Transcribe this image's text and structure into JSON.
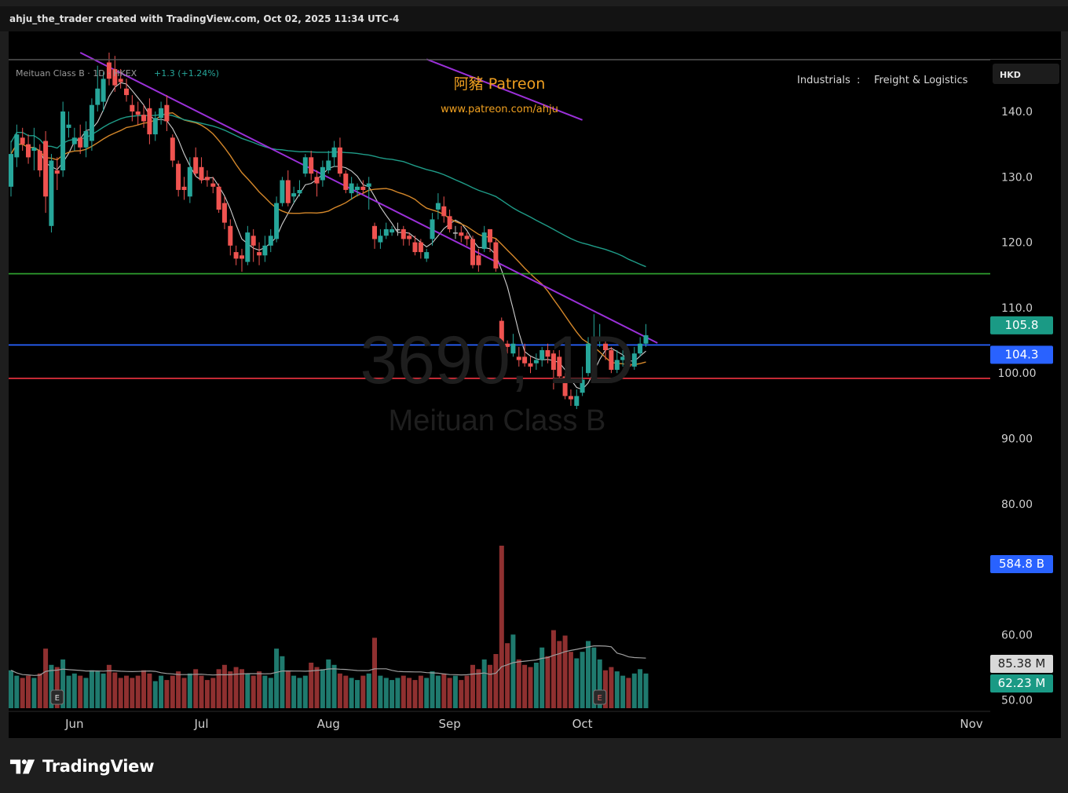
{
  "header": {
    "caption": "ahju_the_trader created with TradingView.com, Oct 02, 2025 11:34 UTC-4"
  },
  "chart_data": {
    "type": "candlestick",
    "symbol_line": "Meituan Class B · 1D · HKEX",
    "change_text": "+1.3 (+1.24%)",
    "watermark_symbol": "3690, 1D",
    "watermark_name": "Meituan Class B",
    "patreon_title": "阿豬 Patreon",
    "patreon_url": "www.patreon.com/ahju",
    "sector": "Industrials",
    "sector_sep": ":",
    "industry": "Freight & Logistics",
    "currency": "HKD",
    "price_axis_ticks": [
      "140.0",
      "130.0",
      "120.0",
      "110.0",
      "100.00",
      "90.00",
      "80.00",
      "60.00",
      "50.00"
    ],
    "price_axis_tick_values": [
      140,
      130,
      120,
      110,
      100,
      90,
      80,
      60,
      50
    ],
    "x_axis_labels": [
      "Jun",
      "Jul",
      "Aug",
      "Sep",
      "Oct",
      "Nov"
    ],
    "badges": {
      "last_price": "105.8",
      "blue_line_price": "104.3",
      "volume_total": "584.8 B",
      "volume_ma": "85.38 M",
      "volume_last": "62.23 M"
    },
    "horizontal_lines": [
      {
        "price": 115.2,
        "color": "#2e9e2e"
      },
      {
        "price": 104.3,
        "color": "#2962ff"
      },
      {
        "price": 99.2,
        "color": "#e0303c"
      }
    ],
    "trendlines": [
      {
        "from": {
          "date": "2025-06-03",
          "price": 149.0
        },
        "to": {
          "date": "2025-10-21",
          "price": 104.6
        },
        "color": "#9b30d9"
      },
      {
        "from": {
          "date": "2025-08-26",
          "price": 148.0
        },
        "to": {
          "date": "2025-10-02",
          "price": 138.7
        },
        "color": "#9b30d9"
      }
    ],
    "candles": [
      {
        "o": 128.5,
        "c": 133.5,
        "h": 135.5,
        "l": 127.0,
        "v": 35
      },
      {
        "o": 133.0,
        "c": 136.5,
        "h": 138.0,
        "l": 131.5,
        "v": 30
      },
      {
        "o": 136.0,
        "c": 135.0,
        "h": 137.5,
        "l": 134.0,
        "v": 28
      },
      {
        "o": 135.0,
        "c": 133.0,
        "h": 136.5,
        "l": 132.0,
        "v": 30
      },
      {
        "o": 134.0,
        "c": 134.5,
        "h": 137.5,
        "l": 131.0,
        "v": 28
      },
      {
        "o": 134.0,
        "c": 131.0,
        "h": 135.0,
        "l": 130.0,
        "v": 32
      },
      {
        "o": 135.5,
        "c": 127.0,
        "h": 137.0,
        "l": 124.5,
        "v": 55
      },
      {
        "o": 122.5,
        "c": 132.5,
        "h": 133.5,
        "l": 121.5,
        "v": 40
      },
      {
        "o": 131.0,
        "c": 130.5,
        "h": 133.0,
        "l": 128.0,
        "v": 38
      },
      {
        "o": 131.0,
        "c": 140.0,
        "h": 141.5,
        "l": 130.0,
        "v": 45
      },
      {
        "o": 137.5,
        "c": 138.0,
        "h": 140.0,
        "l": 136.0,
        "v": 30
      },
      {
        "o": 135.0,
        "c": 136.0,
        "h": 137.5,
        "l": 134.0,
        "v": 32
      },
      {
        "o": 136.0,
        "c": 134.5,
        "h": 138.0,
        "l": 133.5,
        "v": 30
      },
      {
        "o": 134.5,
        "c": 137.0,
        "h": 138.5,
        "l": 133.0,
        "v": 28
      },
      {
        "o": 135.5,
        "c": 141.0,
        "h": 142.0,
        "l": 134.0,
        "v": 35
      },
      {
        "o": 141.0,
        "c": 143.5,
        "h": 147.0,
        "l": 140.0,
        "v": 34
      },
      {
        "o": 141.5,
        "c": 145.0,
        "h": 146.0,
        "l": 140.0,
        "v": 32
      },
      {
        "o": 147.5,
        "c": 145.0,
        "h": 149.0,
        "l": 144.0,
        "v": 40
      },
      {
        "o": 146.5,
        "c": 144.0,
        "h": 148.5,
        "l": 143.0,
        "v": 33
      },
      {
        "o": 145.0,
        "c": 144.5,
        "h": 146.5,
        "l": 143.5,
        "v": 28
      },
      {
        "o": 143.5,
        "c": 142.5,
        "h": 145.0,
        "l": 141.5,
        "v": 30
      },
      {
        "o": 141.0,
        "c": 140.0,
        "h": 142.5,
        "l": 138.5,
        "v": 28
      },
      {
        "o": 140.0,
        "c": 139.5,
        "h": 141.5,
        "l": 138.0,
        "v": 30
      },
      {
        "o": 139.5,
        "c": 138.5,
        "h": 141.0,
        "l": 137.5,
        "v": 35
      },
      {
        "o": 140.5,
        "c": 136.5,
        "h": 142.0,
        "l": 135.0,
        "v": 32
      },
      {
        "o": 136.5,
        "c": 139.0,
        "h": 140.0,
        "l": 135.5,
        "v": 25
      },
      {
        "o": 139.0,
        "c": 140.5,
        "h": 141.5,
        "l": 138.0,
        "v": 30
      },
      {
        "o": 141.0,
        "c": 138.5,
        "h": 142.5,
        "l": 137.0,
        "v": 26
      },
      {
        "o": 136.0,
        "c": 132.5,
        "h": 136.5,
        "l": 131.5,
        "v": 30
      },
      {
        "o": 132.0,
        "c": 128.0,
        "h": 132.5,
        "l": 127.0,
        "v": 34
      },
      {
        "o": 128.5,
        "c": 128.0,
        "h": 130.0,
        "l": 126.5,
        "v": 28
      },
      {
        "o": 127.0,
        "c": 131.5,
        "h": 133.0,
        "l": 126.0,
        "v": 32
      },
      {
        "o": 133.0,
        "c": 130.5,
        "h": 134.5,
        "l": 130.0,
        "v": 36
      },
      {
        "o": 131.5,
        "c": 129.5,
        "h": 133.0,
        "l": 129.0,
        "v": 30
      },
      {
        "o": 130.0,
        "c": 129.5,
        "h": 131.0,
        "l": 128.5,
        "v": 26
      },
      {
        "o": 129.0,
        "c": 128.5,
        "h": 130.0,
        "l": 127.5,
        "v": 28
      },
      {
        "o": 128.5,
        "c": 125.0,
        "h": 129.0,
        "l": 124.5,
        "v": 36
      },
      {
        "o": 126.0,
        "c": 123.0,
        "h": 127.0,
        "l": 122.0,
        "v": 40
      },
      {
        "o": 122.5,
        "c": 119.5,
        "h": 123.5,
        "l": 118.0,
        "v": 34
      },
      {
        "o": 118.5,
        "c": 117.5,
        "h": 119.5,
        "l": 116.5,
        "v": 38
      },
      {
        "o": 118.0,
        "c": 117.5,
        "h": 119.0,
        "l": 115.5,
        "v": 36
      },
      {
        "o": 117.0,
        "c": 121.5,
        "h": 122.5,
        "l": 116.5,
        "v": 32
      },
      {
        "o": 121.0,
        "c": 119.5,
        "h": 122.0,
        "l": 117.0,
        "v": 30
      },
      {
        "o": 118.5,
        "c": 118.0,
        "h": 120.0,
        "l": 116.5,
        "v": 34
      },
      {
        "o": 118.0,
        "c": 119.5,
        "h": 121.0,
        "l": 117.0,
        "v": 30
      },
      {
        "o": 119.5,
        "c": 121.0,
        "h": 122.0,
        "l": 118.5,
        "v": 28
      },
      {
        "o": 120.5,
        "c": 126.0,
        "h": 127.0,
        "l": 120.0,
        "v": 55
      },
      {
        "o": 126.0,
        "c": 129.5,
        "h": 130.0,
        "l": 125.5,
        "v": 48
      },
      {
        "o": 129.5,
        "c": 126.0,
        "h": 131.0,
        "l": 125.5,
        "v": 34
      },
      {
        "o": 127.0,
        "c": 127.5,
        "h": 128.5,
        "l": 126.0,
        "v": 30
      },
      {
        "o": 127.5,
        "c": 128.0,
        "h": 129.5,
        "l": 127.0,
        "v": 28
      },
      {
        "o": 130.5,
        "c": 133.0,
        "h": 133.5,
        "l": 130.0,
        "v": 30
      },
      {
        "o": 133.0,
        "c": 130.5,
        "h": 134.0,
        "l": 129.5,
        "v": 42
      },
      {
        "o": 130.0,
        "c": 129.0,
        "h": 131.0,
        "l": 127.0,
        "v": 38
      },
      {
        "o": 129.5,
        "c": 131.5,
        "h": 132.5,
        "l": 128.5,
        "v": 36
      },
      {
        "o": 131.0,
        "c": 132.5,
        "h": 134.0,
        "l": 130.5,
        "v": 45
      },
      {
        "o": 133.0,
        "c": 134.5,
        "h": 135.5,
        "l": 131.5,
        "v": 40
      },
      {
        "o": 134.5,
        "c": 130.5,
        "h": 136.0,
        "l": 130.0,
        "v": 32
      },
      {
        "o": 130.5,
        "c": 128.0,
        "h": 131.0,
        "l": 127.5,
        "v": 30
      },
      {
        "o": 127.5,
        "c": 129.0,
        "h": 130.0,
        "l": 126.5,
        "v": 28
      },
      {
        "o": 128.0,
        "c": 128.5,
        "h": 129.0,
        "l": 127.0,
        "v": 26
      },
      {
        "o": 128.5,
        "c": 128.0,
        "h": 129.5,
        "l": 127.5,
        "v": 30
      },
      {
        "o": 128.5,
        "c": 129.0,
        "h": 130.0,
        "l": 125.0,
        "v": 32
      },
      {
        "o": 122.5,
        "c": 120.5,
        "h": 123.0,
        "l": 119.0,
        "v": 65
      },
      {
        "o": 120.0,
        "c": 121.0,
        "h": 122.0,
        "l": 119.0,
        "v": 30
      },
      {
        "o": 121.0,
        "c": 122.0,
        "h": 123.0,
        "l": 120.5,
        "v": 28
      },
      {
        "o": 121.5,
        "c": 122.0,
        "h": 122.5,
        "l": 121.0,
        "v": 26
      },
      {
        "o": 122.0,
        "c": 122.0,
        "h": 123.0,
        "l": 121.0,
        "v": 28
      },
      {
        "o": 122.0,
        "c": 120.5,
        "h": 122.5,
        "l": 119.5,
        "v": 30
      },
      {
        "o": 121.0,
        "c": 120.5,
        "h": 121.5,
        "l": 119.5,
        "v": 28
      },
      {
        "o": 120.0,
        "c": 118.5,
        "h": 121.0,
        "l": 118.0,
        "v": 26
      },
      {
        "o": 120.0,
        "c": 118.5,
        "h": 120.5,
        "l": 117.5,
        "v": 30
      },
      {
        "o": 117.5,
        "c": 118.5,
        "h": 119.0,
        "l": 117.0,
        "v": 28
      },
      {
        "o": 120.5,
        "c": 123.5,
        "h": 124.5,
        "l": 119.5,
        "v": 34
      },
      {
        "o": 125.0,
        "c": 126.0,
        "h": 127.5,
        "l": 123.5,
        "v": 30
      },
      {
        "o": 125.5,
        "c": 124.0,
        "h": 127.0,
        "l": 123.0,
        "v": 32
      },
      {
        "o": 124.0,
        "c": 122.0,
        "h": 125.0,
        "l": 121.5,
        "v": 28
      },
      {
        "o": 121.5,
        "c": 121.5,
        "h": 122.5,
        "l": 120.5,
        "v": 30
      },
      {
        "o": 121.5,
        "c": 121.0,
        "h": 122.5,
        "l": 120.0,
        "v": 26
      },
      {
        "o": 121.0,
        "c": 120.5,
        "h": 121.5,
        "l": 119.5,
        "v": 30
      },
      {
        "o": 120.5,
        "c": 116.5,
        "h": 121.0,
        "l": 116.0,
        "v": 40
      },
      {
        "o": 118.0,
        "c": 116.5,
        "h": 119.0,
        "l": 115.5,
        "v": 36
      },
      {
        "o": 119.0,
        "c": 121.5,
        "h": 122.5,
        "l": 118.5,
        "v": 45
      },
      {
        "o": 122.0,
        "c": 120.0,
        "h": 122.0,
        "l": 118.5,
        "v": 40
      },
      {
        "o": 120.0,
        "c": 116.0,
        "h": 120.5,
        "l": 115.5,
        "v": 50
      },
      {
        "o": 108.0,
        "c": 104.5,
        "h": 108.5,
        "l": 104.0,
        "v": 150
      },
      {
        "o": 104.5,
        "c": 104.0,
        "h": 105.0,
        "l": 103.0,
        "v": 60
      },
      {
        "o": 103.0,
        "c": 104.5,
        "h": 106.0,
        "l": 102.5,
        "v": 68
      },
      {
        "o": 102.5,
        "c": 102.0,
        "h": 104.0,
        "l": 101.0,
        "v": 45
      },
      {
        "o": 102.5,
        "c": 101.5,
        "h": 104.5,
        "l": 101.0,
        "v": 40
      },
      {
        "o": 101.5,
        "c": 101.0,
        "h": 102.5,
        "l": 100.0,
        "v": 38
      },
      {
        "o": 101.5,
        "c": 102.0,
        "h": 103.0,
        "l": 100.5,
        "v": 42
      },
      {
        "o": 102.0,
        "c": 103.5,
        "h": 104.0,
        "l": 101.0,
        "v": 56
      },
      {
        "o": 103.5,
        "c": 102.5,
        "h": 104.5,
        "l": 101.5,
        "v": 48
      },
      {
        "o": 103.0,
        "c": 100.5,
        "h": 103.5,
        "l": 97.5,
        "v": 72
      },
      {
        "o": 102.5,
        "c": 99.5,
        "h": 103.5,
        "l": 99.0,
        "v": 62
      },
      {
        "o": 99.5,
        "c": 96.5,
        "h": 100.0,
        "l": 96.0,
        "v": 67
      },
      {
        "o": 96.5,
        "c": 96.0,
        "h": 97.5,
        "l": 95.0,
        "v": 52
      },
      {
        "o": 95.0,
        "c": 96.5,
        "h": 97.5,
        "l": 94.5,
        "v": 46
      },
      {
        "o": 97.0,
        "c": 99.0,
        "h": 101.0,
        "l": 96.5,
        "v": 52
      },
      {
        "o": 100.0,
        "c": 104.5,
        "h": 105.5,
        "l": 99.5,
        "v": 62
      },
      {
        "o": 104.5,
        "c": 105.0,
        "h": 109.0,
        "l": 104.0,
        "v": 56
      },
      {
        "o": 105.0,
        "c": 105.5,
        "h": 107.5,
        "l": 104.0,
        "v": 45
      },
      {
        "o": 104.5,
        "c": 103.5,
        "h": 105.0,
        "l": 102.0,
        "v": 35
      },
      {
        "o": 103.5,
        "c": 100.5,
        "h": 104.0,
        "l": 100.0,
        "v": 38
      },
      {
        "o": 100.5,
        "c": 102.0,
        "h": 103.5,
        "l": 100.0,
        "v": 34
      },
      {
        "o": 102.0,
        "c": 102.5,
        "h": 103.5,
        "l": 101.0,
        "v": 30
      },
      {
        "o": 101.5,
        "c": 101.0,
        "h": 102.5,
        "l": 100.5,
        "v": 28
      },
      {
        "o": 101.0,
        "c": 103.0,
        "h": 104.0,
        "l": 100.5,
        "v": 32
      },
      {
        "o": 103.0,
        "c": 104.5,
        "h": 105.5,
        "l": 102.5,
        "v": 36
      },
      {
        "o": 104.5,
        "c": 105.8,
        "h": 107.5,
        "l": 104.0,
        "v": 32
      }
    ],
    "moving_averages": [
      {
        "name": "MA short",
        "color": "#cfcfcf"
      },
      {
        "name": "MA medium",
        "color": "#d4872a"
      },
      {
        "name": "MA long",
        "color": "#1f9c88"
      }
    ],
    "colors": {
      "up": "#26a69a",
      "down": "#ef5350",
      "up_volume": "#1f7a6e",
      "down_volume": "#8f3030",
      "neutral": "#bdbdbd"
    },
    "ylim": [
      45,
      150
    ],
    "volume_ma_color": "#9e9e9e"
  }
}
